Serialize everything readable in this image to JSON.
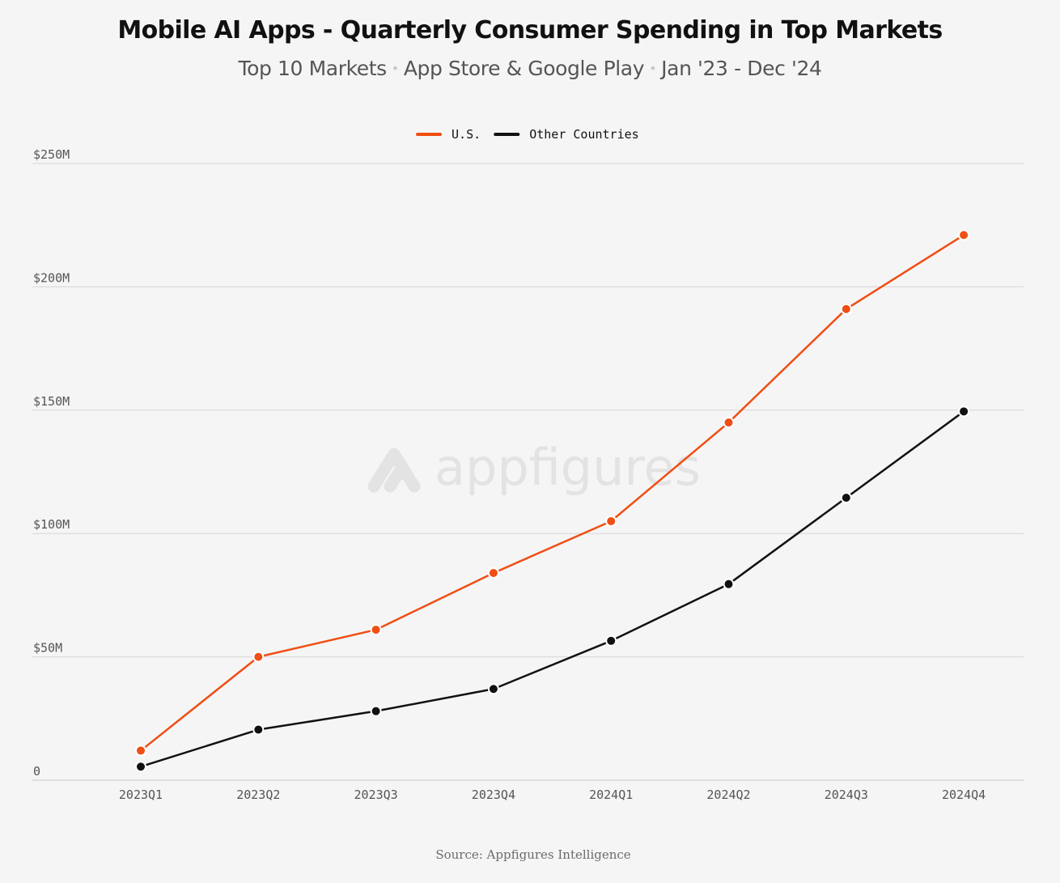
{
  "title": "Mobile AI Apps - Quarterly Consumer Spending in Top Markets",
  "subtitle": {
    "part1": "Top 10 Markets",
    "part2": "App Store & Google Play",
    "part3": "Jan '23 - Dec '24",
    "separator": "•"
  },
  "watermark": "appfigures",
  "source": "Source: Appfigures Intelligence",
  "colors": {
    "us": "#f04e14",
    "other": "#111111",
    "grid": "#d6d6d6",
    "axis_text": "#555555",
    "watermark": "#e3e3e3"
  },
  "chart_data": {
    "type": "line",
    "title": "Mobile AI Apps - Quarterly Consumer Spending in Top Markets",
    "categories": [
      "2023Q1",
      "2023Q2",
      "2023Q3",
      "2023Q4",
      "2024Q1",
      "2024Q2",
      "2024Q3",
      "2024Q4"
    ],
    "series": [
      {
        "name": "U.S.",
        "color": "#f04e14",
        "values": [
          12,
          50,
          61,
          84,
          105,
          145,
          191,
          221
        ]
      },
      {
        "name": "Other Countries",
        "color": "#111111",
        "values": [
          5.5,
          20.5,
          28,
          37,
          56.5,
          79.5,
          114.5,
          149.5
        ]
      }
    ],
    "y_ticks": [
      {
        "value": 0,
        "label": "0"
      },
      {
        "value": 50,
        "label": "$50M"
      },
      {
        "value": 100,
        "label": "$100M"
      },
      {
        "value": 150,
        "label": "$150M"
      },
      {
        "value": 200,
        "label": "$200M"
      },
      {
        "value": 250,
        "label": "$250M"
      }
    ],
    "ylim": [
      0,
      250
    ],
    "xlabel": "",
    "ylabel": "",
    "grid": true,
    "legend_position": "top-center"
  }
}
